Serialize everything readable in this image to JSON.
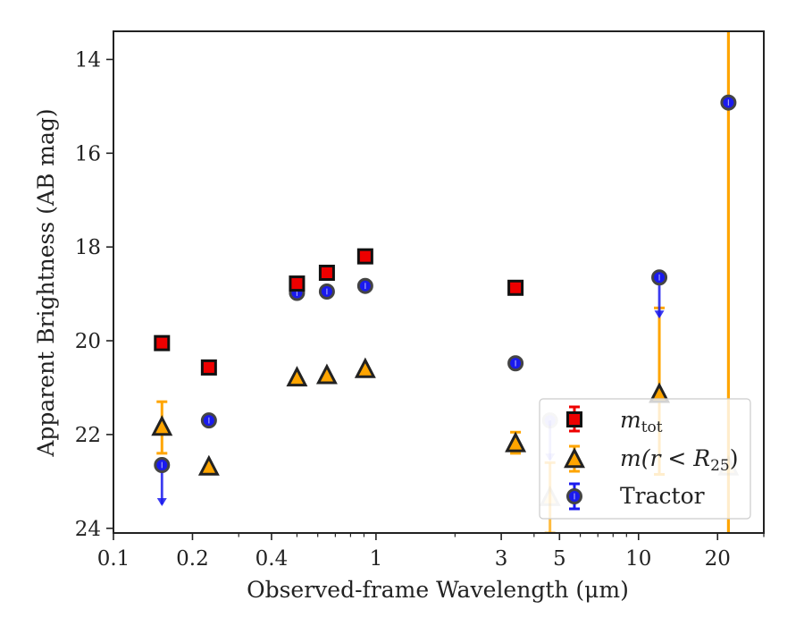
{
  "chart_data": {
    "type": "scatter",
    "title": "",
    "xlabel": "Observed-frame Wavelength (μm)",
    "ylabel": "Apparent Brightness (AB mag)",
    "xscale": "log",
    "xlim": [
      0.1,
      30
    ],
    "ylim": [
      24.1,
      13.4
    ],
    "y_inverted": true,
    "x_tick_labels": [
      {
        "value": 0.1,
        "label": "0.1"
      },
      {
        "value": 0.2,
        "label": "0.2"
      },
      {
        "value": 0.4,
        "label": "0.4"
      },
      {
        "value": 1,
        "label": "1"
      },
      {
        "value": 3,
        "label": "3"
      },
      {
        "value": 5,
        "label": "5"
      },
      {
        "value": 10,
        "label": "10"
      },
      {
        "value": 20,
        "label": "20"
      }
    ],
    "x_minor_ticks": [
      0.3,
      0.5,
      0.6,
      0.7,
      0.8,
      0.9,
      2,
      4,
      6,
      7,
      8,
      9,
      30
    ],
    "y_tick_labels": [
      {
        "value": 14,
        "label": "14"
      },
      {
        "value": 16,
        "label": "16"
      },
      {
        "value": 18,
        "label": "18"
      },
      {
        "value": 20,
        "label": "20"
      },
      {
        "value": 22,
        "label": "22"
      },
      {
        "value": 24,
        "label": "24"
      }
    ],
    "grid": false,
    "legend_position": "lower-right",
    "series": [
      {
        "name": "m_tot",
        "marker": "square",
        "color": "#ee0000",
        "edge": "#111111",
        "points": [
          {
            "x": 0.153,
            "y": 20.05
          },
          {
            "x": 0.231,
            "y": 20.57
          },
          {
            "x": 0.5,
            "y": 18.78
          },
          {
            "x": 0.65,
            "y": 18.55
          },
          {
            "x": 0.91,
            "y": 18.2
          },
          {
            "x": 3.4,
            "y": 18.87
          }
        ]
      },
      {
        "name": "m(r < R25)",
        "marker": "triangle",
        "color": "#ffa500",
        "edge": "#222222",
        "points": [
          {
            "x": 0.153,
            "y": 21.85,
            "yerr": [
              21.3,
              22.4
            ]
          },
          {
            "x": 0.231,
            "y": 22.7
          },
          {
            "x": 0.5,
            "y": 20.8
          },
          {
            "x": 0.65,
            "y": 20.75
          },
          {
            "x": 0.91,
            "y": 20.62
          },
          {
            "x": 3.4,
            "y": 22.2,
            "yerr": [
              21.95,
              22.4
            ]
          },
          {
            "x": 4.6,
            "y": 23.35,
            "yerr": [
              22.6,
              24.1
            ],
            "faded": true
          },
          {
            "x": 12,
            "y": 21.15,
            "yerr": [
              19.3,
              22.85
            ]
          },
          {
            "x": 22,
            "y": 22.7,
            "yerr": [
              13.4,
              24.1
            ],
            "faded": true
          }
        ]
      },
      {
        "name": "Tractor",
        "marker": "circle",
        "color": "#1a1aee",
        "edge": "#444444",
        "points": [
          {
            "x": 0.153,
            "y": 22.65,
            "upper_limit": true
          },
          {
            "x": 0.231,
            "y": 21.7
          },
          {
            "x": 0.5,
            "y": 18.98
          },
          {
            "x": 0.65,
            "y": 18.95
          },
          {
            "x": 0.91,
            "y": 18.83
          },
          {
            "x": 3.4,
            "y": 20.48
          },
          {
            "x": 4.6,
            "y": 21.7,
            "upper_limit": true,
            "faded": true
          },
          {
            "x": 12,
            "y": 18.65,
            "upper_limit": true
          },
          {
            "x": 22,
            "y": 14.92
          }
        ]
      }
    ],
    "legend": {
      "mtot_main": "m",
      "mtot_sub": "tot",
      "mr_pre": "m(r < R",
      "mr_sub": "25",
      "mr_post": ")",
      "tractor": "Tractor"
    }
  }
}
